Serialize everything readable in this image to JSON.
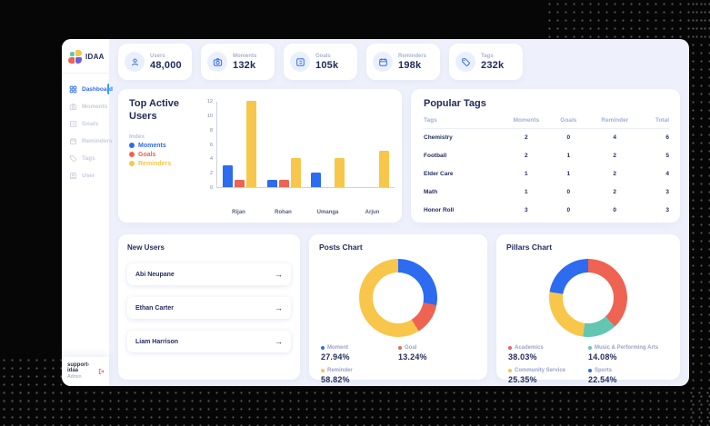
{
  "app": {
    "name": "IDAA"
  },
  "sidebar": {
    "items": [
      {
        "label": "Dashboard",
        "active": true
      },
      {
        "label": "Moments",
        "active": false
      },
      {
        "label": "Goals",
        "active": false
      },
      {
        "label": "Reminders",
        "active": false
      },
      {
        "label": "Tags",
        "active": false
      },
      {
        "label": "User",
        "active": false
      }
    ],
    "footer": {
      "username": "support-idaa",
      "role": "Admin"
    }
  },
  "stats": [
    {
      "label": "Users",
      "value": "48,000"
    },
    {
      "label": "Moments",
      "value": "132k"
    },
    {
      "label": "Goals",
      "value": "105k"
    },
    {
      "label": "Reminders",
      "value": "198k"
    },
    {
      "label": "Tags",
      "value": "232k"
    }
  ],
  "colors": {
    "accent_blue": "#2d6bf0",
    "accent_red": "#ee6352",
    "accent_yellow": "#f7c64b",
    "accent_teal": "#63c6b3",
    "navy_text": "#232d5e",
    "logout_red": "#ee4b4b"
  },
  "chart_data": [
    {
      "type": "bar",
      "title": "Top Active Users",
      "legend_title": "Index",
      "legend_position": "left",
      "categories": [
        "Rijan",
        "Rohan",
        "Umanga",
        "Arjun"
      ],
      "series": [
        {
          "name": "Moments",
          "color": "#2d6bf0",
          "values": [
            3,
            1,
            2,
            0
          ]
        },
        {
          "name": "Goals",
          "color": "#ee6352",
          "values": [
            1,
            1,
            0,
            0
          ]
        },
        {
          "name": "Reminders",
          "color": "#f7c64b",
          "values": [
            12,
            4,
            4,
            5
          ]
        }
      ],
      "ylim": [
        0,
        12
      ],
      "yticks": [
        0,
        2,
        4,
        6,
        8,
        10,
        12
      ],
      "grid": false
    },
    {
      "type": "pie",
      "title": "Posts Chart",
      "donut": true,
      "legend_position": "bottom",
      "segments": [
        {
          "label": "Moment",
          "value": 27.94,
          "display": "27.94%",
          "color": "#2d6bf0"
        },
        {
          "label": "Goal",
          "value": 13.24,
          "display": "13.24%",
          "color": "#ee6352"
        },
        {
          "label": "Reminder",
          "value": 58.82,
          "display": "58.82%",
          "color": "#f7c64b"
        }
      ]
    },
    {
      "type": "pie",
      "title": "Pillars Chart",
      "donut": true,
      "legend_position": "bottom",
      "segments": [
        {
          "label": "Academics",
          "value": 38.03,
          "display": "38.03%",
          "color": "#ee6352"
        },
        {
          "label": "Music & Performing Arts",
          "value": 14.08,
          "display": "14.08%",
          "color": "#63c6b3"
        },
        {
          "label": "Community Service",
          "value": 25.35,
          "display": "25.35%",
          "color": "#f7c64b"
        },
        {
          "label": "Sports",
          "value": 22.54,
          "display": "22.54%",
          "color": "#2d6bf0"
        }
      ]
    }
  ],
  "popular_tags": {
    "title": "Popular Tags",
    "headers": [
      "Tags",
      "Moments",
      "Goals",
      "Reminder",
      "Total"
    ],
    "rows": [
      {
        "tag": "Chemistry",
        "moments": 2,
        "goals": 0,
        "reminder": 4,
        "total": 6
      },
      {
        "tag": "Football",
        "moments": 2,
        "goals": 1,
        "reminder": 2,
        "total": 5
      },
      {
        "tag": "Elder Care",
        "moments": 1,
        "goals": 1,
        "reminder": 2,
        "total": 4
      },
      {
        "tag": "Math",
        "moments": 1,
        "goals": 0,
        "reminder": 2,
        "total": 3
      },
      {
        "tag": "Honor Roll",
        "moments": 3,
        "goals": 0,
        "reminder": 0,
        "total": 3
      }
    ]
  },
  "new_users": {
    "title": "New Users",
    "users": [
      "Abi Neupane",
      "Ethan Carter",
      "Liam Harrison"
    ]
  }
}
